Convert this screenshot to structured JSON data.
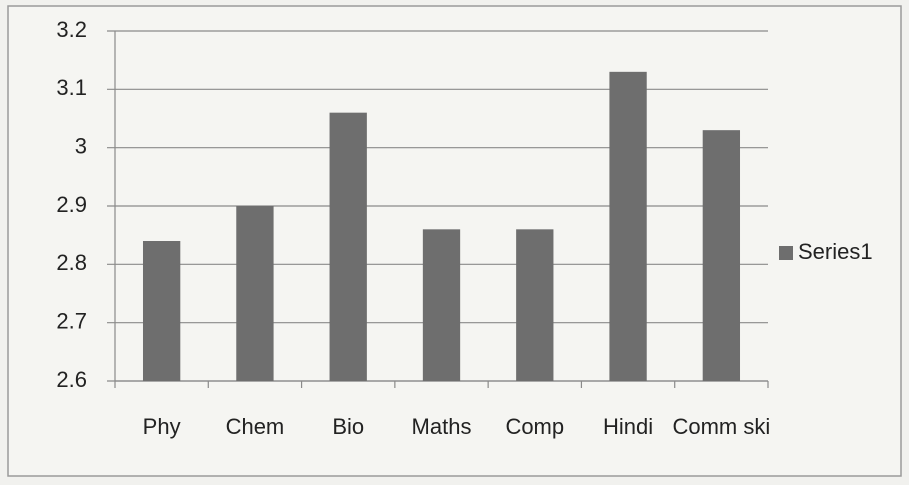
{
  "chart_data": {
    "type": "bar",
    "categories": [
      "Phy",
      "Chem",
      "Bio",
      "Maths",
      "Comp",
      "Hindi",
      "Comm ski"
    ],
    "series": [
      {
        "name": "Series1",
        "color": "#6e6e6e",
        "values": [
          2.84,
          2.9,
          3.06,
          2.86,
          2.86,
          3.13,
          3.03
        ]
      }
    ],
    "ylim": [
      2.6,
      3.2
    ],
    "yticks": [
      2.6,
      2.7,
      2.8,
      2.9,
      3,
      3.1,
      3.2
    ],
    "grid": true,
    "legend": "right"
  }
}
